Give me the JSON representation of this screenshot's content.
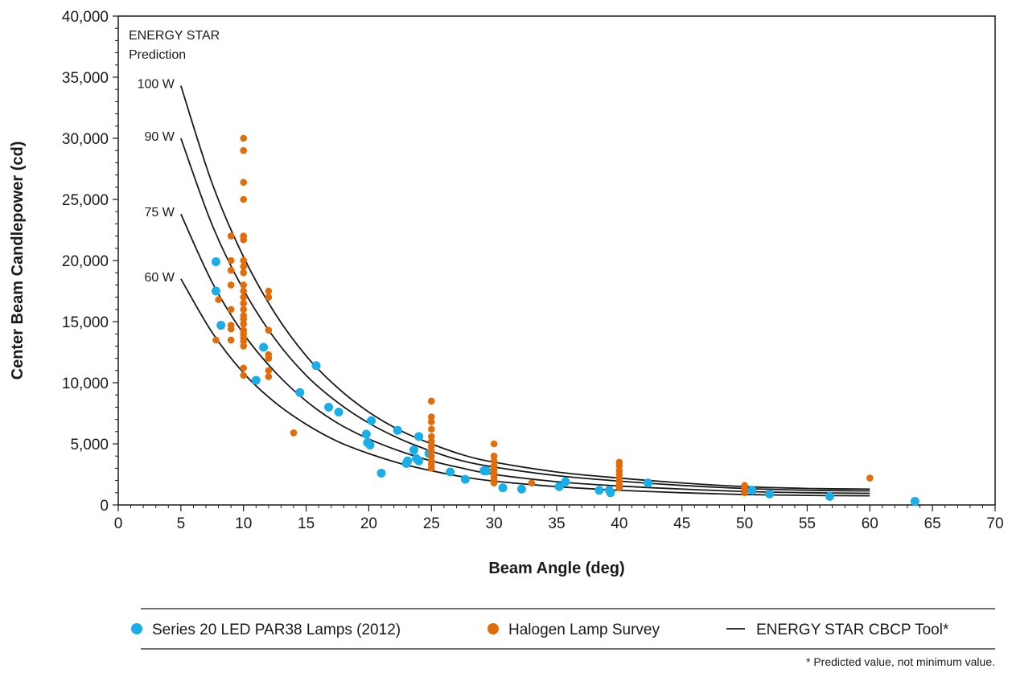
{
  "chart_data": {
    "type": "scatter",
    "xlabel": "Beam Angle (deg)",
    "ylabel": "Center Beam Candlepower (cd)",
    "xlim": [
      0,
      70
    ],
    "ylim": [
      0,
      40000
    ],
    "x_ticks": [
      0,
      5,
      10,
      15,
      20,
      25,
      30,
      35,
      40,
      45,
      50,
      55,
      60,
      65,
      70
    ],
    "y_ticks": [
      0,
      5000,
      10000,
      15000,
      20000,
      25000,
      30000,
      35000,
      40000
    ],
    "x_tick_labels": [
      "0",
      "5",
      "10",
      "15",
      "20",
      "25",
      "30",
      "35",
      "40",
      "45",
      "50",
      "55",
      "60",
      "65",
      "70"
    ],
    "y_tick_labels": [
      "0",
      "5,000",
      "10,000",
      "15,000",
      "20,000",
      "25,000",
      "30,000",
      "35,000",
      "40,000"
    ],
    "grid": false,
    "legend_position": "bottom",
    "annotation": [
      "ENERGY STAR",
      "Prediction"
    ],
    "footnote": "* Predicted value, not minimum value.",
    "series": [
      {
        "name": "Series 20 LED PAR38 Lamps (2012)",
        "kind": "scatter",
        "color": "#1aaee8",
        "points": [
          [
            7.8,
            19900
          ],
          [
            7.8,
            17500
          ],
          [
            8.2,
            14700
          ],
          [
            11.0,
            10200
          ],
          [
            11.6,
            12900
          ],
          [
            14.5,
            9200
          ],
          [
            15.8,
            11400
          ],
          [
            16.8,
            8000
          ],
          [
            17.6,
            7600
          ],
          [
            19.8,
            5800
          ],
          [
            19.9,
            5100
          ],
          [
            20.1,
            4900
          ],
          [
            20.2,
            6900
          ],
          [
            21.0,
            2600
          ],
          [
            22.3,
            6100
          ],
          [
            23.0,
            3400
          ],
          [
            23.1,
            3600
          ],
          [
            23.6,
            4500
          ],
          [
            23.8,
            3800
          ],
          [
            24.0,
            3600
          ],
          [
            24.0,
            5600
          ],
          [
            24.8,
            4200
          ],
          [
            26.5,
            2700
          ],
          [
            27.7,
            2100
          ],
          [
            29.2,
            2800
          ],
          [
            29.4,
            2800
          ],
          [
            30.7,
            1400
          ],
          [
            32.2,
            1300
          ],
          [
            35.2,
            1500
          ],
          [
            35.7,
            1900
          ],
          [
            38.4,
            1200
          ],
          [
            39.2,
            1200
          ],
          [
            39.3,
            1000
          ],
          [
            42.3,
            1800
          ],
          [
            50.6,
            1200
          ],
          [
            52.0,
            900
          ],
          [
            56.8,
            700
          ],
          [
            63.6,
            300
          ]
        ]
      },
      {
        "name": "Halogen Lamp Survey",
        "kind": "scatter",
        "color": "#e36c0a",
        "points": [
          [
            7.8,
            13500
          ],
          [
            8.0,
            16800
          ],
          [
            9.0,
            22000
          ],
          [
            9.0,
            20000
          ],
          [
            9.0,
            19200
          ],
          [
            9.0,
            18000
          ],
          [
            9.0,
            16000
          ],
          [
            9.0,
            14700
          ],
          [
            9.0,
            14400
          ],
          [
            9.0,
            13500
          ],
          [
            10.0,
            30000
          ],
          [
            10.0,
            29000
          ],
          [
            10.0,
            26400
          ],
          [
            10.0,
            25000
          ],
          [
            10.0,
            22000
          ],
          [
            10.0,
            21700
          ],
          [
            10.0,
            20000
          ],
          [
            10.0,
            19500
          ],
          [
            10.0,
            19000
          ],
          [
            10.0,
            18000
          ],
          [
            10.0,
            17500
          ],
          [
            10.0,
            17000
          ],
          [
            10.0,
            16500
          ],
          [
            10.0,
            16000
          ],
          [
            10.0,
            15500
          ],
          [
            10.0,
            15200
          ],
          [
            10.0,
            14800
          ],
          [
            10.0,
            14300
          ],
          [
            10.0,
            14000
          ],
          [
            10.0,
            13700
          ],
          [
            10.0,
            13400
          ],
          [
            10.0,
            13000
          ],
          [
            10.0,
            11200
          ],
          [
            10.0,
            10600
          ],
          [
            12.0,
            17500
          ],
          [
            12.0,
            17000
          ],
          [
            12.0,
            14300
          ],
          [
            12.0,
            12300
          ],
          [
            12.0,
            12000
          ],
          [
            12.0,
            11000
          ],
          [
            12.0,
            10500
          ],
          [
            14.0,
            5900
          ],
          [
            25.0,
            8500
          ],
          [
            25.0,
            7200
          ],
          [
            25.0,
            6800
          ],
          [
            25.0,
            6200
          ],
          [
            25.0,
            5600
          ],
          [
            25.0,
            5200
          ],
          [
            25.0,
            4800
          ],
          [
            25.0,
            4400
          ],
          [
            25.0,
            4000
          ],
          [
            25.0,
            3600
          ],
          [
            25.0,
            3300
          ],
          [
            25.0,
            3000
          ],
          [
            30.0,
            5000
          ],
          [
            30.0,
            4000
          ],
          [
            30.0,
            3600
          ],
          [
            30.0,
            3200
          ],
          [
            30.0,
            2900
          ],
          [
            30.0,
            2600
          ],
          [
            30.0,
            2300
          ],
          [
            30.0,
            2000
          ],
          [
            30.0,
            1800
          ],
          [
            33.0,
            1800
          ],
          [
            40.0,
            3500
          ],
          [
            40.0,
            3200
          ],
          [
            40.0,
            2800
          ],
          [
            40.0,
            2500
          ],
          [
            40.0,
            2200
          ],
          [
            40.0,
            1900
          ],
          [
            40.0,
            1600
          ],
          [
            40.0,
            1400
          ],
          [
            50.0,
            1600
          ],
          [
            50.0,
            1400
          ],
          [
            50.0,
            1200
          ],
          [
            50.0,
            1000
          ],
          [
            60.0,
            2200
          ]
        ]
      },
      {
        "name": "ENERGY STAR CBCP Tool*",
        "kind": "line",
        "color": "#1a1a1a",
        "curves": [
          {
            "label": "100 W",
            "x": [
              5,
              7.5,
              10,
              12.5,
              15,
              17.5,
              20,
              22.5,
              25,
              27.5,
              30,
              35,
              40,
              45,
              50,
              55,
              60
            ],
            "y": [
              34300,
              26300,
              20300,
              15700,
              12200,
              9600,
              7600,
              6100,
              5000,
              4100,
              3500,
              2700,
              2200,
              1800,
              1500,
              1350,
              1300
            ]
          },
          {
            "label": "90 W",
            "x": [
              5,
              7.5,
              10,
              12.5,
              15,
              17.5,
              20,
              22.5,
              25,
              27.5,
              30,
              35,
              40,
              45,
              50,
              55,
              60
            ],
            "y": [
              30000,
              22900,
              17600,
              13600,
              10600,
              8400,
              6700,
              5400,
              4400,
              3600,
              3100,
              2400,
              1950,
              1600,
              1350,
              1200,
              1150
            ]
          },
          {
            "label": "75 W",
            "x": [
              5,
              7.5,
              10,
              12.5,
              15,
              17.5,
              20,
              22.5,
              25,
              27.5,
              30,
              35,
              40,
              45,
              50,
              55,
              60
            ],
            "y": [
              23800,
              18200,
              14000,
              10900,
              8500,
              6700,
              5400,
              4400,
              3600,
              3000,
              2500,
              1900,
              1550,
              1300,
              1100,
              1000,
              950
            ]
          },
          {
            "label": "60 W",
            "x": [
              5,
              7.5,
              10,
              12.5,
              15,
              17.5,
              20,
              22.5,
              25,
              27.5,
              30,
              35,
              40,
              45,
              50,
              55,
              60
            ],
            "y": [
              18500,
              14100,
              10800,
              8400,
              6600,
              5200,
              4200,
              3400,
              2800,
              2300,
              1950,
              1500,
              1200,
              1000,
              850,
              780,
              750
            ]
          }
        ]
      }
    ]
  }
}
